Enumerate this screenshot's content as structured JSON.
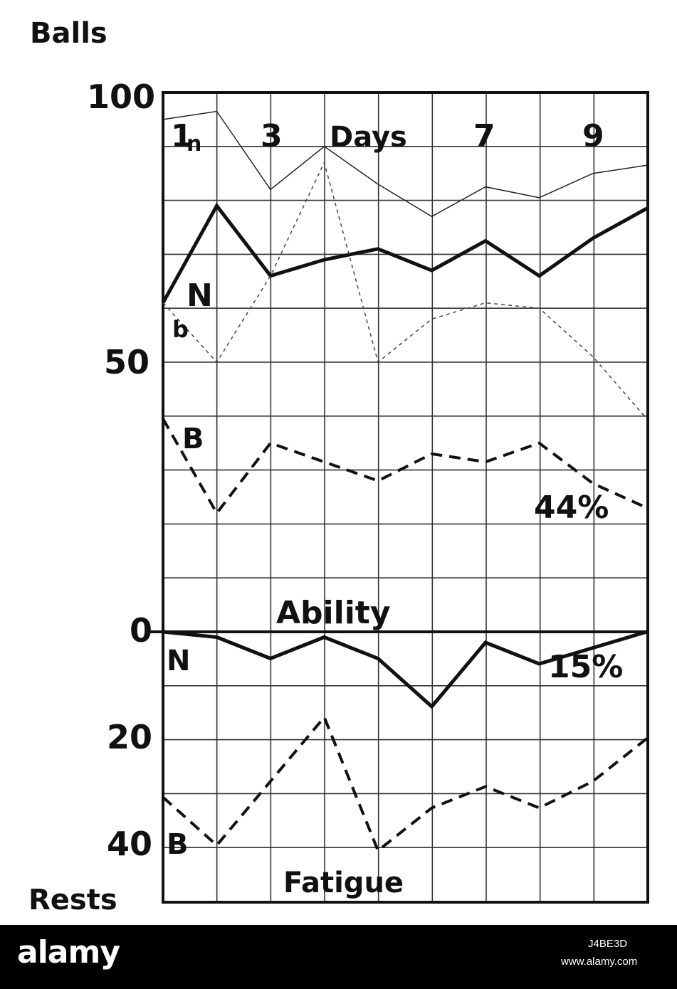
{
  "chart_data": [
    {
      "type": "line",
      "title": "Ability",
      "ylabel": "Balls",
      "xlabel": "Days",
      "ylim": [
        0,
        100
      ],
      "x": [
        0,
        1,
        2,
        3,
        4,
        5,
        6,
        7,
        8,
        9
      ],
      "x_tick_labels": [
        "1",
        "3",
        "7",
        "9"
      ],
      "y_tick_labels": [
        "100",
        "50",
        "0"
      ],
      "grid": true,
      "series": [
        {
          "name": "n",
          "style": "thin",
          "values": [
            95,
            96.5,
            82,
            90,
            83,
            77,
            82.5,
            80.5,
            85,
            86.5
          ]
        },
        {
          "name": "N",
          "style": "bold",
          "values": [
            61,
            79,
            66,
            69,
            71,
            67,
            72.5,
            66,
            73,
            78.5
          ]
        },
        {
          "name": "b",
          "style": "dotted",
          "values": [
            61,
            50,
            66,
            87,
            50,
            58,
            61,
            60,
            51,
            39.5
          ]
        },
        {
          "name": "B",
          "style": "dashed",
          "values": [
            39.5,
            22,
            35,
            31.5,
            28,
            33,
            31.5,
            35,
            27.5,
            23
          ]
        }
      ],
      "annotations": [
        "44%"
      ]
    },
    {
      "type": "line",
      "title": "Fatigue",
      "ylabel": "Rests",
      "ylim": [
        0,
        45
      ],
      "y_inverted": true,
      "x": [
        0,
        1,
        2,
        3,
        4,
        5,
        6,
        7,
        8,
        9
      ],
      "y_tick_labels": [
        "0",
        "20",
        "40"
      ],
      "grid": true,
      "series": [
        {
          "name": "N",
          "style": "bold",
          "values": [
            0,
            1,
            5,
            1,
            5,
            14,
            2,
            6,
            3,
            0
          ]
        },
        {
          "name": "B",
          "style": "dashed",
          "values": [
            31,
            40,
            28,
            16,
            41,
            33,
            29,
            33,
            28,
            20
          ]
        }
      ],
      "annotations": [
        "15%"
      ]
    }
  ],
  "footer": {
    "brand": "alamy",
    "image_id": "J4BE3D",
    "url": "www.alamy.com"
  },
  "colors": {
    "ink": "#111111",
    "grid": "#333333",
    "background": "#ffffff",
    "footer": "#000000"
  }
}
